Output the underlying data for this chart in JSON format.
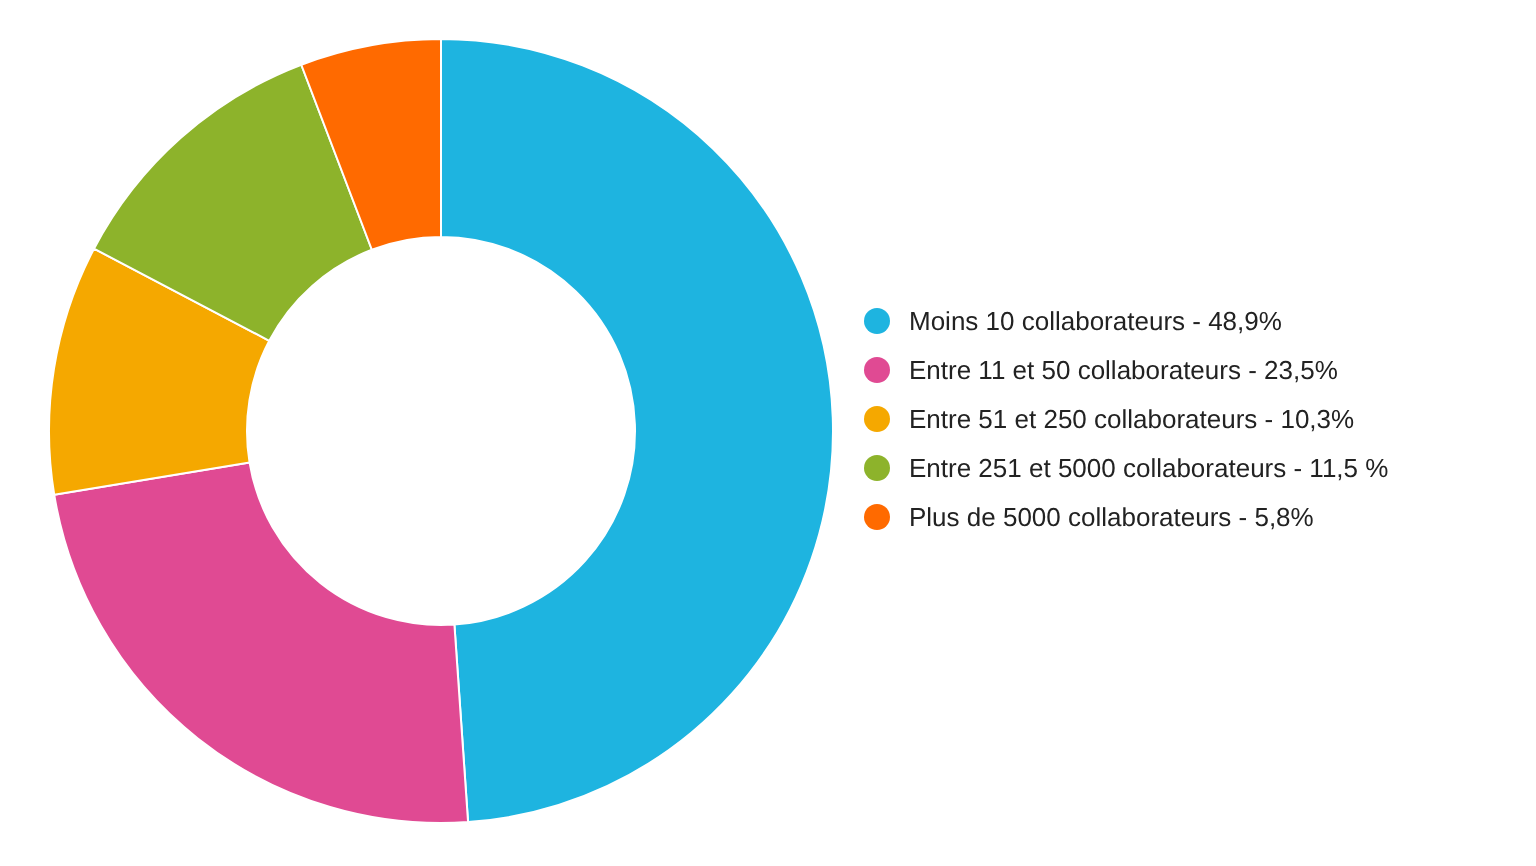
{
  "chart_data": {
    "type": "donut",
    "categories": [
      "Moins 10 collaborateurs - 48,9%",
      "Entre 11 et 50 collaborateurs - 23,5%",
      "Entre 51 et 250 collaborateurs - 10,3%",
      "Entre 251 et 5000 collaborateurs - 11,5 %",
      "Plus de 5000 collaborateurs - 5,8%"
    ],
    "values": [
      48.9,
      23.5,
      10.3,
      11.5,
      5.8
    ],
    "colors": [
      "#1eb4e0",
      "#e04a93",
      "#f5a800",
      "#8db32b",
      "#ff6a00"
    ],
    "legend": "right"
  }
}
